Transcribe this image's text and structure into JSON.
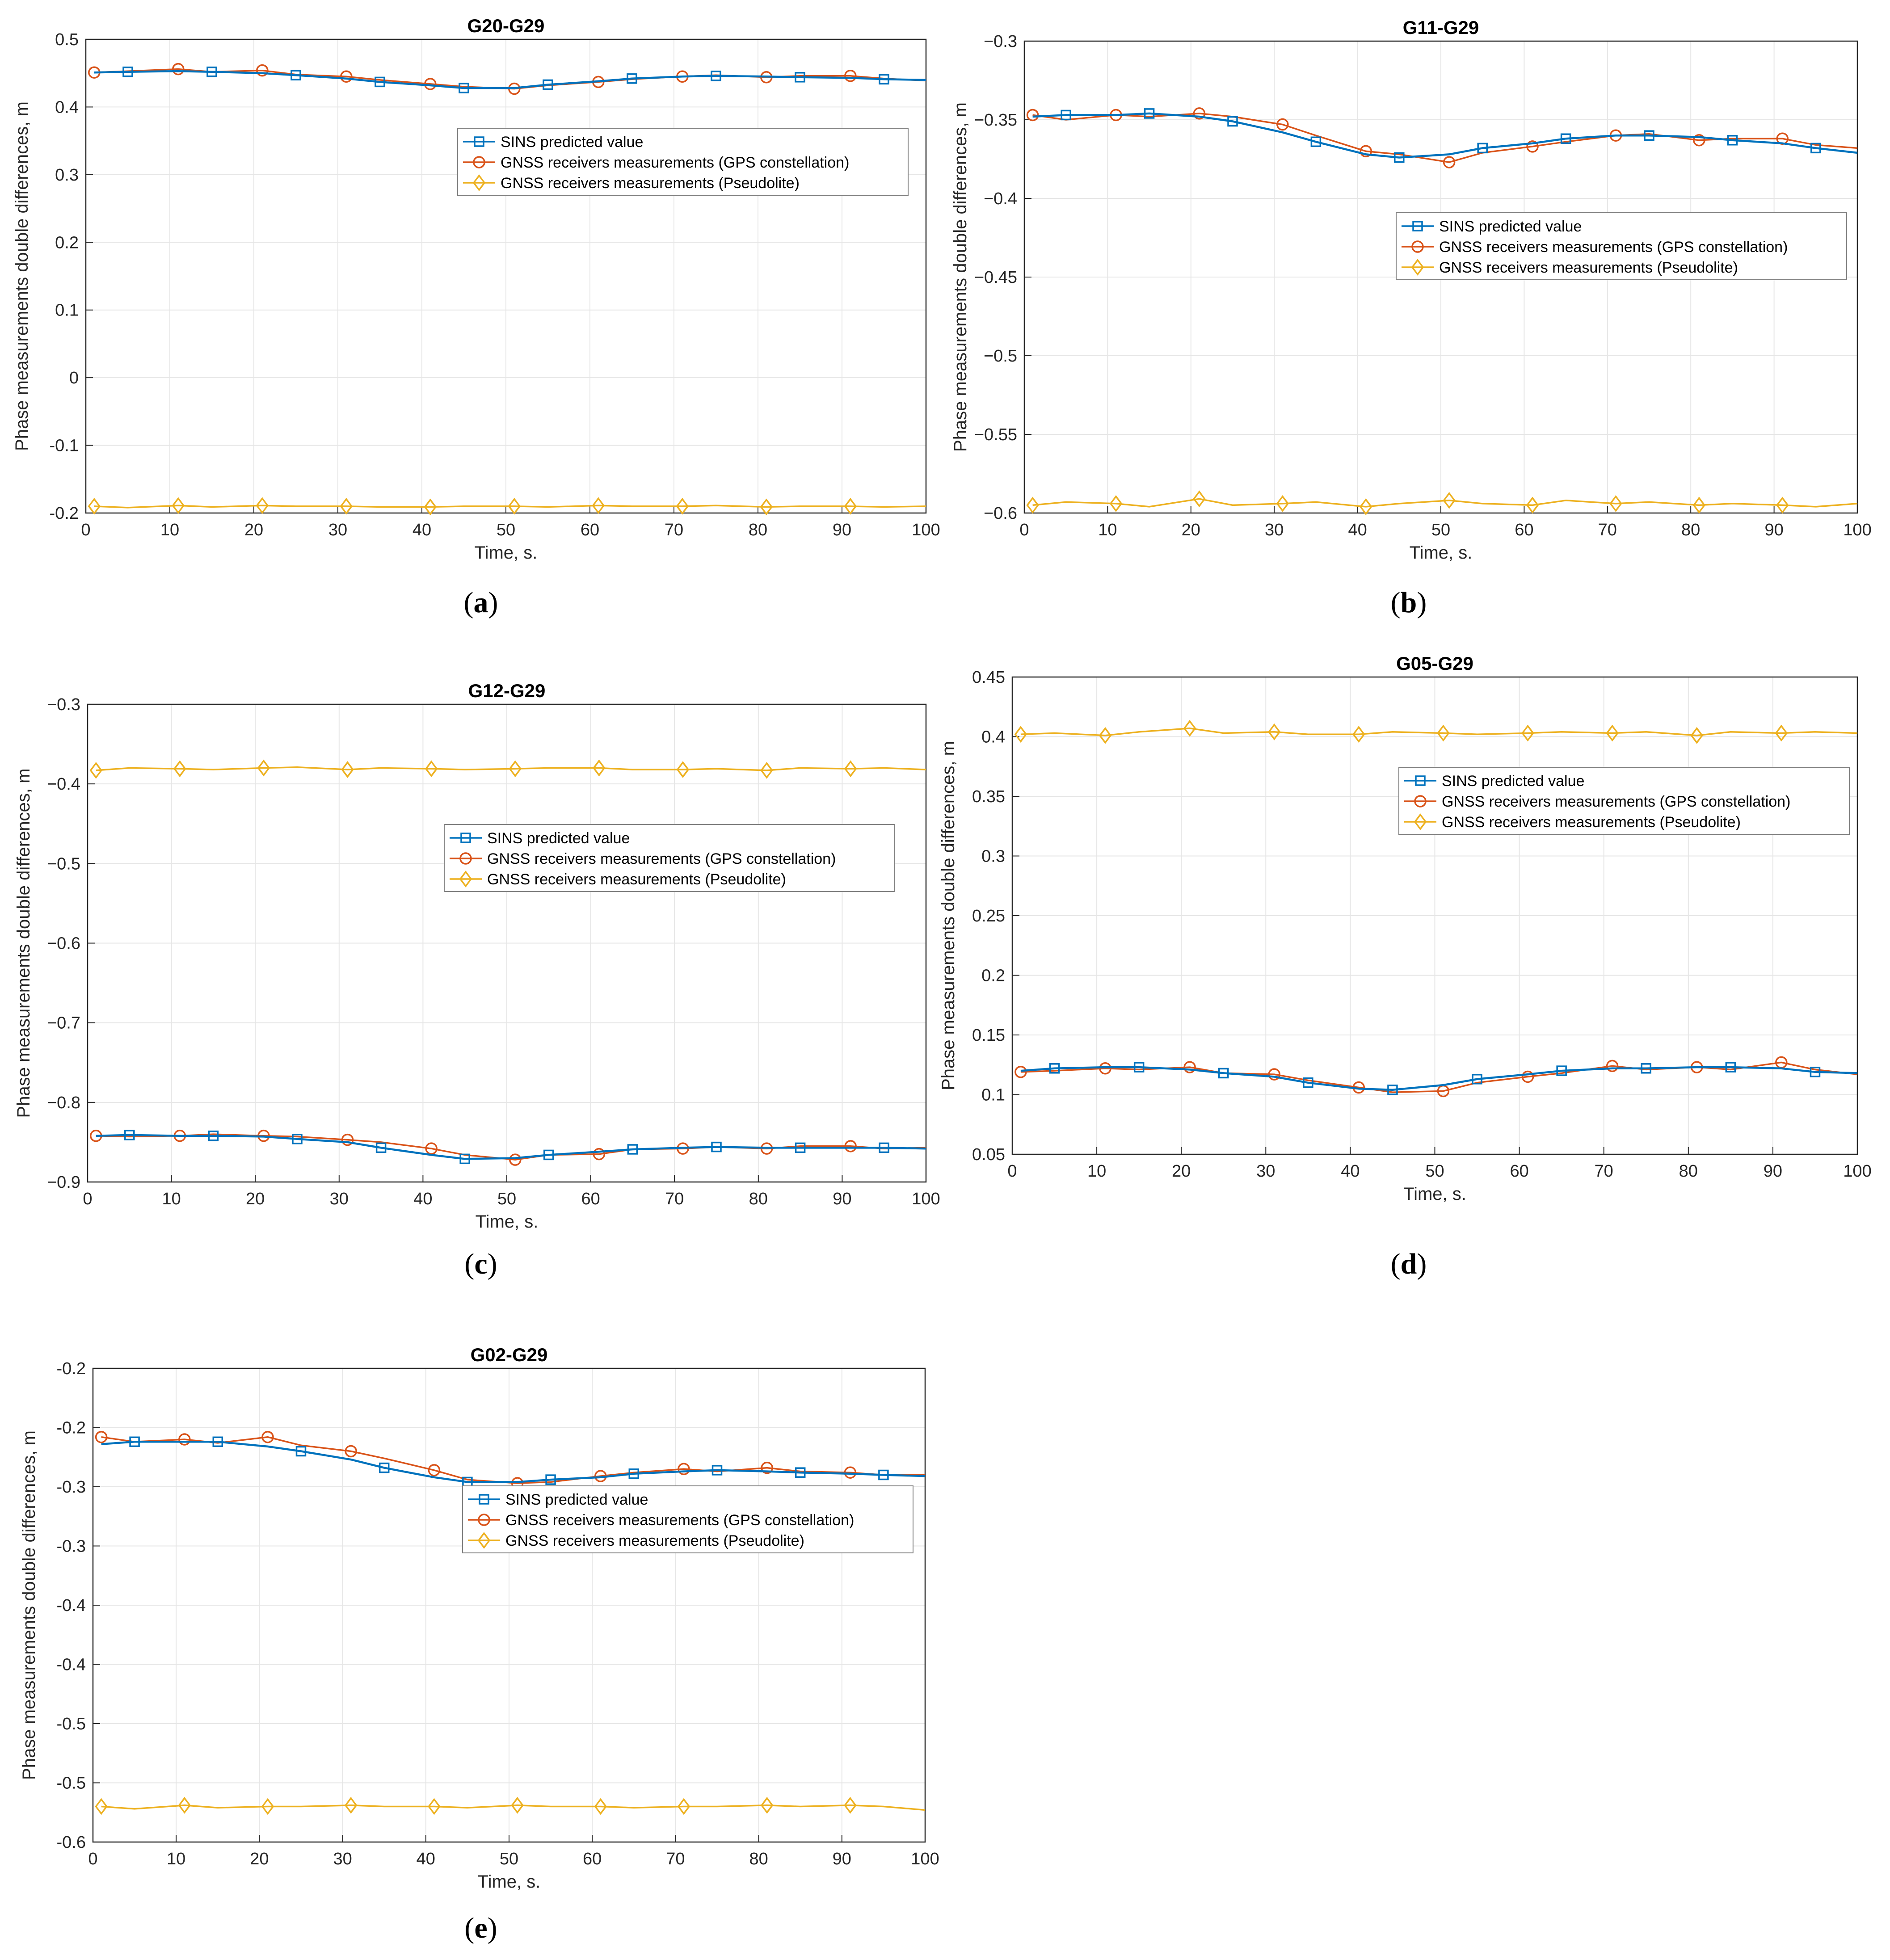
{
  "legend_entries": [
    "SINS predicted value",
    "GNSS receivers measurements (GPS constellation)",
    "GNSS receivers measurements (Pseudolite)"
  ],
  "series_colors": [
    "#0072BD",
    "#D95319",
    "#EDB120"
  ],
  "chart_data": [
    {
      "type": "line",
      "panel_caption_letter": "a",
      "title": "G20-G29",
      "xlabel": "Time, s.",
      "ylabel": "Phase measurements double differences, m",
      "xlim": [
        0,
        100
      ],
      "ylim": [
        -0.2,
        0.5
      ],
      "xticks": [
        0,
        10,
        20,
        30,
        40,
        50,
        60,
        70,
        80,
        90,
        100
      ],
      "yticks": [
        -0.2,
        -0.1,
        0,
        0.1,
        0.2,
        0.3,
        0.4,
        0.5
      ],
      "ytick_labels": [
        "-0.2",
        "-0.1",
        "0",
        "0.1",
        "0.2",
        "0.3",
        "0.4",
        "0.5"
      ],
      "legend_location": "upper-right-inner",
      "x": [
        1,
        5,
        11,
        15,
        21,
        25,
        31,
        35,
        41,
        45,
        51,
        55,
        61,
        65,
        71,
        75,
        81,
        85,
        91,
        95,
        100
      ],
      "series": [
        {
          "name": "SINS predicted value",
          "marker": "square",
          "marker_x": [
            5,
            15,
            25,
            35,
            45,
            55,
            65,
            75,
            85,
            95
          ],
          "values": [
            0.451,
            0.452,
            0.453,
            0.452,
            0.45,
            0.447,
            0.442,
            0.437,
            0.432,
            0.428,
            0.428,
            0.433,
            0.438,
            0.442,
            0.445,
            0.446,
            0.445,
            0.444,
            0.443,
            0.441,
            0.44
          ]
        },
        {
          "name": "GNSS receivers measurements (GPS constellation)",
          "marker": "circle",
          "marker_x": [
            1,
            11,
            21,
            31,
            41,
            51,
            61,
            71,
            81,
            91
          ],
          "values": [
            0.451,
            0.453,
            0.456,
            0.452,
            0.454,
            0.448,
            0.445,
            0.44,
            0.434,
            0.43,
            0.427,
            0.432,
            0.437,
            0.441,
            0.445,
            0.447,
            0.444,
            0.446,
            0.446,
            0.442,
            0.439
          ]
        },
        {
          "name": "GNSS receivers measurements (Pseudolite)",
          "marker": "diamond",
          "marker_x": [
            1,
            11,
            21,
            31,
            41,
            51,
            61,
            71,
            81,
            91
          ],
          "values": [
            -0.19,
            -0.192,
            -0.189,
            -0.191,
            -0.189,
            -0.19,
            -0.19,
            -0.191,
            -0.191,
            -0.19,
            -0.19,
            -0.191,
            -0.189,
            -0.19,
            -0.19,
            -0.189,
            -0.191,
            -0.19,
            -0.19,
            -0.191,
            -0.19
          ]
        }
      ]
    },
    {
      "type": "line",
      "panel_caption_letter": "b",
      "title": "G11-G29",
      "xlabel": "Time, s.",
      "ylabel": "Phase measurements double differences, m",
      "xlim": [
        0,
        100
      ],
      "ylim": [
        -0.6,
        -0.3
      ],
      "xticks": [
        0,
        10,
        20,
        30,
        40,
        50,
        60,
        70,
        80,
        90,
        100
      ],
      "yticks": [
        -0.6,
        -0.55,
        -0.5,
        -0.45,
        -0.4,
        -0.35,
        -0.3
      ],
      "ytick_labels": [
        "−0.6",
        "−0.55",
        "−0.5",
        "−0.45",
        "−0.4",
        "−0.35",
        "−0.3"
      ],
      "legend_location": "middle-right-inner",
      "x": [
        1,
        5,
        11,
        15,
        21,
        25,
        31,
        35,
        41,
        45,
        51,
        55,
        61,
        65,
        71,
        75,
        81,
        85,
        91,
        95,
        100
      ],
      "series": [
        {
          "name": "SINS predicted value",
          "marker": "square",
          "marker_x": [
            5,
            15,
            25,
            35,
            45,
            55,
            65,
            75,
            85,
            95
          ],
          "values": [
            -0.348,
            -0.347,
            -0.347,
            -0.346,
            -0.348,
            -0.351,
            -0.358,
            -0.364,
            -0.372,
            -0.374,
            -0.372,
            -0.368,
            -0.365,
            -0.362,
            -0.36,
            -0.36,
            -0.361,
            -0.363,
            -0.365,
            -0.368,
            -0.371
          ]
        },
        {
          "name": "GNSS receivers measurements (GPS constellation)",
          "marker": "circle",
          "marker_x": [
            1,
            11,
            21,
            31,
            41,
            51,
            61,
            71,
            81,
            91
          ],
          "values": [
            -0.347,
            -0.35,
            -0.347,
            -0.348,
            -0.346,
            -0.348,
            -0.353,
            -0.36,
            -0.37,
            -0.372,
            -0.377,
            -0.371,
            -0.367,
            -0.364,
            -0.36,
            -0.359,
            -0.363,
            -0.362,
            -0.362,
            -0.366,
            -0.368
          ]
        },
        {
          "name": "GNSS receivers measurements (Pseudolite)",
          "marker": "diamond",
          "marker_x": [
            1,
            11,
            21,
            31,
            41,
            51,
            61,
            71,
            81,
            91
          ],
          "values": [
            -0.595,
            -0.593,
            -0.594,
            -0.596,
            -0.591,
            -0.595,
            -0.594,
            -0.593,
            -0.596,
            -0.594,
            -0.592,
            -0.594,
            -0.595,
            -0.592,
            -0.594,
            -0.593,
            -0.595,
            -0.594,
            -0.595,
            -0.596,
            -0.594
          ]
        }
      ]
    },
    {
      "type": "line",
      "panel_caption_letter": "c",
      "title": "G12-G29",
      "xlabel": "Time, s.",
      "ylabel": "Phase measurements double differences, m",
      "xlim": [
        0,
        100
      ],
      "ylim": [
        -0.9,
        -0.3
      ],
      "xticks": [
        0,
        10,
        20,
        30,
        40,
        50,
        60,
        70,
        80,
        90,
        100
      ],
      "yticks": [
        -0.9,
        -0.8,
        -0.7,
        -0.6,
        -0.5,
        -0.4,
        -0.3
      ],
      "ytick_labels": [
        "−0.9",
        "−0.8",
        "−0.7",
        "−0.6",
        "−0.5",
        "−0.4",
        "−0.3"
      ],
      "legend_location": "upper-right-inner",
      "x": [
        1,
        5,
        11,
        15,
        21,
        25,
        31,
        35,
        41,
        45,
        51,
        55,
        61,
        65,
        71,
        75,
        81,
        85,
        91,
        95,
        100
      ],
      "series": [
        {
          "name": "SINS predicted value",
          "marker": "square",
          "marker_x": [
            5,
            15,
            25,
            35,
            45,
            55,
            65,
            75,
            85,
            95
          ],
          "values": [
            -0.842,
            -0.841,
            -0.842,
            -0.842,
            -0.843,
            -0.846,
            -0.85,
            -0.857,
            -0.866,
            -0.871,
            -0.87,
            -0.866,
            -0.862,
            -0.859,
            -0.857,
            -0.856,
            -0.857,
            -0.857,
            -0.857,
            -0.857,
            -0.858
          ]
        },
        {
          "name": "GNSS receivers measurements (GPS constellation)",
          "marker": "circle",
          "marker_x": [
            1,
            11,
            21,
            31,
            41,
            51,
            61,
            71,
            81,
            91
          ],
          "values": [
            -0.842,
            -0.843,
            -0.842,
            -0.84,
            -0.842,
            -0.843,
            -0.847,
            -0.85,
            -0.858,
            -0.866,
            -0.872,
            -0.866,
            -0.865,
            -0.859,
            -0.858,
            -0.856,
            -0.858,
            -0.855,
            -0.855,
            -0.858,
            -0.857
          ]
        },
        {
          "name": "GNSS receivers measurements (Pseudolite)",
          "marker": "diamond",
          "marker_x": [
            1,
            11,
            21,
            31,
            41,
            51,
            61,
            71,
            81,
            91
          ],
          "values": [
            -0.383,
            -0.38,
            -0.381,
            -0.382,
            -0.38,
            -0.379,
            -0.382,
            -0.38,
            -0.381,
            -0.382,
            -0.381,
            -0.38,
            -0.38,
            -0.382,
            -0.382,
            -0.381,
            -0.383,
            -0.38,
            -0.381,
            -0.38,
            -0.382
          ]
        }
      ]
    },
    {
      "type": "line",
      "panel_caption_letter": "d",
      "title": "G05-G29",
      "xlabel": "Time, s.",
      "ylabel": "Phase measurements double differences, m",
      "xlim": [
        0,
        100
      ],
      "ylim": [
        0.05,
        0.45
      ],
      "xticks": [
        0,
        10,
        20,
        30,
        40,
        50,
        60,
        70,
        80,
        90,
        100
      ],
      "yticks": [
        0.05,
        0.1,
        0.15,
        0.2,
        0.25,
        0.3,
        0.35,
        0.4,
        0.45
      ],
      "ytick_labels": [
        "0.05",
        "0.1",
        "0.15",
        "0.2",
        "0.25",
        "0.3",
        "0.35",
        "0.4",
        "0.45"
      ],
      "legend_location": "upper-right-inner",
      "x": [
        1,
        5,
        11,
        15,
        21,
        25,
        31,
        35,
        41,
        45,
        51,
        55,
        61,
        65,
        71,
        75,
        81,
        85,
        91,
        95,
        100
      ],
      "series": [
        {
          "name": "SINS predicted value",
          "marker": "square",
          "marker_x": [
            5,
            15,
            25,
            35,
            45,
            55,
            65,
            75,
            85,
            95
          ],
          "values": [
            0.12,
            0.122,
            0.123,
            0.123,
            0.121,
            0.118,
            0.115,
            0.11,
            0.105,
            0.104,
            0.108,
            0.113,
            0.117,
            0.12,
            0.122,
            0.122,
            0.123,
            0.123,
            0.122,
            0.119,
            0.118
          ]
        },
        {
          "name": "GNSS receivers measurements (GPS constellation)",
          "marker": "circle",
          "marker_x": [
            1,
            11,
            21,
            31,
            41,
            51,
            61,
            71,
            81,
            91
          ],
          "values": [
            0.119,
            0.12,
            0.122,
            0.121,
            0.123,
            0.118,
            0.117,
            0.112,
            0.106,
            0.102,
            0.103,
            0.11,
            0.115,
            0.118,
            0.124,
            0.121,
            0.123,
            0.121,
            0.127,
            0.121,
            0.117
          ]
        },
        {
          "name": "GNSS receivers measurements (Pseudolite)",
          "marker": "diamond",
          "marker_x": [
            1,
            11,
            21,
            31,
            41,
            51,
            61,
            71,
            81,
            91
          ],
          "values": [
            0.402,
            0.403,
            0.401,
            0.404,
            0.407,
            0.403,
            0.404,
            0.402,
            0.402,
            0.404,
            0.403,
            0.402,
            0.403,
            0.404,
            0.403,
            0.404,
            0.401,
            0.404,
            0.403,
            0.404,
            0.403
          ]
        }
      ]
    },
    {
      "type": "line",
      "panel_caption_letter": "e",
      "title": "G02-G29",
      "xlabel": "Time, s.",
      "ylabel": "Phase measurements double differences, m",
      "xlim": [
        0,
        100
      ],
      "ylim": [
        -0.6,
        -0.2
      ],
      "xticks": [
        0,
        10,
        20,
        30,
        40,
        50,
        60,
        70,
        80,
        90,
        100
      ],
      "yticks": [
        -0.6,
        -0.55,
        -0.5,
        -0.45,
        -0.4,
        -0.35,
        -0.3,
        -0.25,
        -0.2
      ],
      "ytick_labels": [
        "-0.6",
        "-0.5",
        "-0.5",
        "-0.4",
        "-0.4",
        "-0.3",
        "-0.3",
        "-0.2",
        "-0.2"
      ],
      "legend_location": "upper-right-inner",
      "x": [
        1,
        5,
        11,
        15,
        21,
        25,
        31,
        35,
        41,
        45,
        51,
        55,
        61,
        65,
        71,
        75,
        81,
        85,
        91,
        95,
        100
      ],
      "series": [
        {
          "name": "SINS predicted value",
          "marker": "square",
          "marker_x": [
            5,
            15,
            25,
            35,
            45,
            55,
            65,
            75,
            85,
            95
          ],
          "values": [
            -0.264,
            -0.262,
            -0.262,
            -0.262,
            -0.266,
            -0.27,
            -0.277,
            -0.284,
            -0.292,
            -0.296,
            -0.296,
            -0.294,
            -0.292,
            -0.289,
            -0.287,
            -0.286,
            -0.287,
            -0.288,
            -0.289,
            -0.29,
            -0.291
          ]
        },
        {
          "name": "GNSS receivers measurements (GPS constellation)",
          "marker": "circle",
          "marker_x": [
            1,
            11,
            21,
            31,
            41,
            51,
            61,
            71,
            81,
            91
          ],
          "values": [
            -0.258,
            -0.262,
            -0.26,
            -0.263,
            -0.258,
            -0.265,
            -0.27,
            -0.276,
            -0.286,
            -0.294,
            -0.297,
            -0.296,
            -0.291,
            -0.288,
            -0.285,
            -0.287,
            -0.284,
            -0.287,
            -0.288,
            -0.29,
            -0.29
          ]
        },
        {
          "name": "GNSS receivers measurements (Pseudolite)",
          "marker": "diamond",
          "marker_x": [
            1,
            11,
            21,
            31,
            41,
            51,
            61,
            71,
            81,
            91
          ],
          "values": [
            -0.57,
            -0.572,
            -0.569,
            -0.571,
            -0.57,
            -0.57,
            -0.569,
            -0.57,
            -0.57,
            -0.571,
            -0.569,
            -0.57,
            -0.57,
            -0.571,
            -0.57,
            -0.57,
            -0.569,
            -0.57,
            -0.569,
            -0.57,
            -0.573
          ]
        }
      ]
    }
  ]
}
